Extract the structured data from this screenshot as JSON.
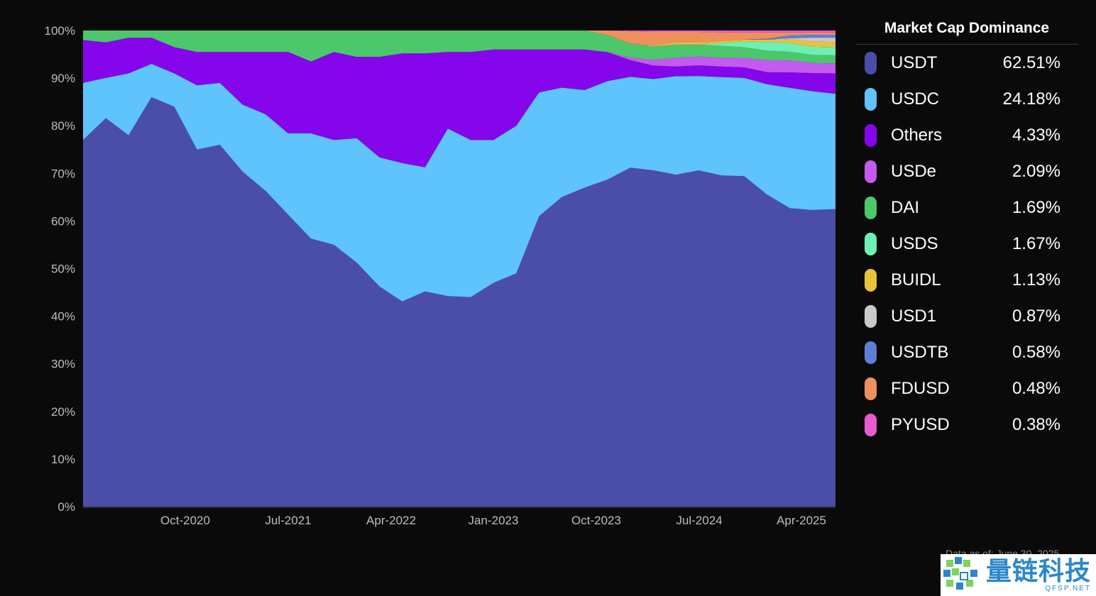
{
  "chart_data": {
    "type": "area",
    "stacked": true,
    "normalized": true,
    "legend_title": "Market Cap Dominance",
    "y_ticks": [
      "0%",
      "10%",
      "20%",
      "30%",
      "40%",
      "50%",
      "60%",
      "70%",
      "80%",
      "90%",
      "100%"
    ],
    "ylim": [
      0,
      100
    ],
    "x_ticks": [
      "Oct-2020",
      "Jul-2021",
      "Apr-2022",
      "Jan-2023",
      "Oct-2023",
      "Jul-2024",
      "Apr-2025"
    ],
    "x": [
      "2020-01",
      "2020-03",
      "2020-05",
      "2020-07",
      "2020-09",
      "2020-11",
      "2021-01",
      "2021-03",
      "2021-05",
      "2021-07",
      "2021-09",
      "2021-11",
      "2022-01",
      "2022-03",
      "2022-05",
      "2022-07",
      "2022-09",
      "2022-11",
      "2023-01",
      "2023-03",
      "2023-05",
      "2023-07",
      "2023-09",
      "2023-11",
      "2024-01",
      "2024-03",
      "2024-05",
      "2024-07",
      "2024-09",
      "2024-11",
      "2025-01",
      "2025-03",
      "2025-05",
      "2025-06"
    ],
    "series": [
      {
        "name": "USDT",
        "color": "#4b4ea8",
        "latest": "62.51%",
        "values": [
          77,
          82,
          78,
          86,
          84,
          75,
          76,
          70,
          66,
          61,
          56,
          55,
          51,
          46,
          43,
          45,
          44,
          44,
          47,
          49,
          61,
          65,
          67,
          68,
          71,
          70,
          69,
          69.5,
          69,
          69,
          65,
          62,
          62,
          62.5
        ]
      },
      {
        "name": "USDC",
        "color": "#5ec4fb",
        "latest": "24.18%",
        "values": [
          12,
          8.5,
          13,
          7,
          7,
          13.5,
          13,
          14,
          16,
          17,
          22,
          22,
          26,
          27,
          29,
          26,
          35,
          33,
          30,
          31,
          26,
          23,
          20.5,
          20.5,
          19,
          19,
          20.5,
          19.5,
          20.5,
          20.5,
          23,
          25,
          24.8,
          24.2
        ]
      },
      {
        "name": "Others",
        "color": "#8506ea",
        "latest": "4.33%",
        "values": [
          9,
          7.5,
          7.5,
          5.5,
          5.5,
          7,
          6.5,
          11,
          13,
          17,
          15,
          18.5,
          17,
          21,
          23,
          23.8,
          16,
          18.5,
          19,
          16,
          9,
          8,
          8.5,
          6,
          3.5,
          2.8,
          2,
          2.2,
          2.2,
          2.2,
          2.5,
          3.2,
          3.8,
          4.3
        ]
      },
      {
        "name": "USDe",
        "color": "#c45af0",
        "latest": "2.09%",
        "values": [
          0,
          0,
          0,
          0,
          0,
          0,
          0,
          0,
          0,
          0,
          0,
          0,
          0,
          0,
          0,
          0,
          0,
          0,
          0,
          0,
          0,
          0,
          0,
          0,
          0.5,
          1.2,
          1.8,
          1.8,
          1.8,
          2,
          2.5,
          2.5,
          2.1,
          2.1
        ]
      },
      {
        "name": "DAI",
        "color": "#4cc76c",
        "latest": "1.69%",
        "values": [
          2,
          2.5,
          1.5,
          1.5,
          3.5,
          4.5,
          4.5,
          4.5,
          4.5,
          4.5,
          6.5,
          4.5,
          5.5,
          5.5,
          4.8,
          4.8,
          4.5,
          4.5,
          4,
          4,
          4,
          4,
          4,
          3.5,
          3,
          2.8,
          2.8,
          2.5,
          2.5,
          2.2,
          2,
          1.8,
          1.7,
          1.7
        ]
      },
      {
        "name": "USDS",
        "color": "#6ef0b4",
        "latest": "1.67%",
        "values": [
          0,
          0,
          0,
          0,
          0,
          0,
          0,
          0,
          0,
          0,
          0,
          0,
          0,
          0,
          0,
          0,
          0,
          0,
          0,
          0,
          0,
          0,
          0,
          0,
          0,
          0,
          0,
          0,
          0.6,
          1.2,
          1.8,
          1.8,
          1.7,
          1.7
        ]
      },
      {
        "name": "BUIDL",
        "color": "#e8c23a",
        "latest": "1.13%",
        "values": [
          0,
          0,
          0,
          0,
          0,
          0,
          0,
          0,
          0,
          0,
          0,
          0,
          0,
          0,
          0,
          0,
          0,
          0,
          0,
          0,
          0,
          0,
          0,
          0,
          0,
          0.2,
          0.4,
          0.4,
          0.4,
          0.4,
          0.5,
          0.8,
          1.1,
          1.1
        ]
      },
      {
        "name": "USD1",
        "color": "#c9c9c9",
        "latest": "0.87%",
        "values": [
          0,
          0,
          0,
          0,
          0,
          0,
          0,
          0,
          0,
          0,
          0,
          0,
          0,
          0,
          0,
          0,
          0,
          0,
          0,
          0,
          0,
          0,
          0,
          0,
          0,
          0,
          0,
          0,
          0,
          0,
          0,
          0.2,
          0.8,
          0.9
        ]
      },
      {
        "name": "USDTB",
        "color": "#5f7fd6",
        "latest": "0.58%",
        "values": [
          0,
          0,
          0,
          0,
          0,
          0,
          0,
          0,
          0,
          0,
          0,
          0,
          0,
          0,
          0,
          0,
          0,
          0,
          0,
          0,
          0,
          0,
          0,
          0,
          0,
          0,
          0,
          0,
          0,
          0,
          0.2,
          0.6,
          0.6,
          0.6
        ]
      },
      {
        "name": "FDUSD",
        "color": "#f0905e",
        "latest": "0.48%",
        "values": [
          0,
          0,
          0,
          0,
          0,
          0,
          0,
          0,
          0,
          0,
          0,
          0,
          0,
          0,
          0,
          0,
          0,
          0,
          0,
          0,
          0,
          0,
          0,
          1,
          2.5,
          2.8,
          2.2,
          2.2,
          1.8,
          1.5,
          1.3,
          0.6,
          0.5,
          0.5
        ]
      },
      {
        "name": "PYUSD",
        "color": "#e85ccf",
        "latest": "0.38%",
        "values": [
          0,
          0,
          0,
          0,
          0,
          0,
          0,
          0,
          0,
          0,
          0,
          0,
          0,
          0,
          0,
          0,
          0,
          0,
          0,
          0,
          0,
          0,
          0,
          0,
          0.2,
          0.3,
          0.3,
          0.3,
          0.4,
          0.4,
          0.4,
          0.4,
          0.4,
          0.4
        ]
      }
    ]
  },
  "note": "Data as of: June 30, 2025",
  "watermark": {
    "cn": "量链科技",
    "en": "QFSP.NET"
  }
}
